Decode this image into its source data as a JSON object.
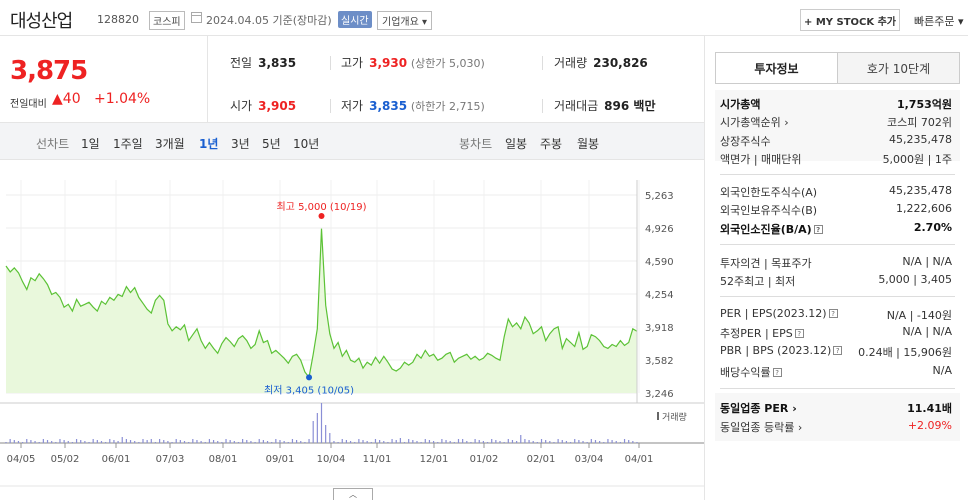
{
  "header": {
    "stock_name": "대성산업",
    "stock_code": "128820",
    "market": "코스피",
    "date": "2024.04.05  기준(장마감)",
    "realtime_badge": "실시간",
    "overview_button": "기업개요 ▾",
    "mystock_button": "+ MY STOCK 추가",
    "quick_order": "빠른주문 ▾"
  },
  "quote": {
    "price": "3,875",
    "change_label": "전일대비",
    "change_arrow": "▲",
    "change_value": "40",
    "change_pct": "+1.04%"
  },
  "stats": {
    "prev_label": "전일",
    "prev_value": "3,835",
    "high_label": "고가",
    "high_value": "3,930",
    "high_sub": "(상한가 5,030)",
    "volume_label": "거래량",
    "volume_value": "230,826",
    "open_label": "시가",
    "open_value": "3,905",
    "low_label": "저가",
    "low_value": "3,835",
    "low_sub": "(하한가 2,715)",
    "amount_label": "거래대금",
    "amount_value": "896 백만"
  },
  "periods": {
    "line_label": "선차트",
    "line_items": [
      "1일",
      "1주일",
      "3개월",
      "1년",
      "3년",
      "5년",
      "10년"
    ],
    "active": "1년",
    "candle_label": "봉차트",
    "candle_items": [
      "일봉",
      "주봉",
      "월봉"
    ]
  },
  "chart_data": {
    "type": "area",
    "y_ticks": [
      "5,263",
      "4,926",
      "4,590",
      "4,254",
      "3,918",
      "3,582",
      "3,246"
    ],
    "ylim": [
      3246,
      5263
    ],
    "x_ticks": [
      "04/05",
      "05/02",
      "06/01",
      "07/03",
      "08/01",
      "09/01",
      "10/04",
      "11/01",
      "12/01",
      "01/02",
      "02/01",
      "03/04",
      "04/01"
    ],
    "high_annotation": "최고 5,000 (10/19)",
    "low_annotation": "최저 3,405 (10/05)",
    "volume_label": "거래량",
    "series": [
      {
        "values": [
          4540,
          4480,
          4520,
          4470,
          4380,
          4300,
          4420,
          4390,
          4460,
          4410,
          4350,
          4250,
          4270,
          4220,
          4120,
          4150,
          4080,
          4200,
          4130,
          4150,
          4170,
          4120,
          4080,
          4180,
          4150,
          4220,
          4190,
          4250,
          4230,
          4330,
          4270,
          4320,
          4220,
          4160,
          4100,
          4060,
          4190,
          4240,
          4190,
          3950,
          3880,
          3920,
          3890,
          3940,
          3780,
          3840,
          3900,
          3780,
          3700,
          3760,
          3700,
          3650,
          3750,
          3810,
          3770,
          3720,
          3800,
          3830,
          3780,
          3700,
          3740,
          3880,
          3760,
          3780,
          3650,
          3680,
          3640,
          3600,
          3550,
          3620,
          3640,
          3580,
          3460,
          3405,
          3640,
          3900,
          4920,
          4140,
          3850,
          3700,
          3760,
          3620,
          3680,
          3580,
          3560,
          3600,
          3500,
          3560,
          3530,
          3610,
          3550,
          3620,
          3560,
          3490,
          3470,
          3500,
          3560,
          3530,
          3560,
          3640,
          3600,
          3680,
          3620,
          3640,
          3580,
          3600,
          3640,
          3660,
          3560,
          3600,
          3620,
          3640,
          3590,
          3620,
          3580,
          3600,
          3650,
          3630,
          3600,
          3580,
          3820,
          4000,
          3920,
          3960,
          3900,
          4020,
          3960,
          3850,
          3880,
          3920,
          3780,
          3850,
          3900,
          3920,
          3700,
          3800,
          3760,
          3720,
          3860,
          3690,
          3720,
          3840,
          3820,
          3780,
          3720,
          3700,
          3740,
          3720,
          3780,
          3730,
          3760,
          3900,
          3875
        ]
      }
    ]
  },
  "info_panel": {
    "tab_info": "투자정보",
    "tab_orderbook": "호가 10단계",
    "market_cap_label": "시가총액",
    "market_cap_value": "1,753억원",
    "cap_rank_label": "시가총액순위",
    "cap_rank_value": "코스피 702위",
    "shares_label": "상장주식수",
    "shares_value": "45,235,478",
    "par_label": "액면가 | 매매단위",
    "par_value": "5,000원 | 1주",
    "foreign_limit_label": "외국인한도주식수(A)",
    "foreign_limit_value": "45,235,478",
    "foreign_hold_label": "외국인보유주식수(B)",
    "foreign_hold_value": "1,222,606",
    "foreign_ratio_label": "외국인소진율(B/A)",
    "foreign_ratio_value": "2.70%",
    "opinion_label": "투자의견 | 목표주가",
    "opinion_value": "N/A | N/A",
    "week52_label": "52주최고 | 최저",
    "week52_value": "5,000 | 3,405",
    "per_label": "PER | EPS(2023.12)",
    "per_value": "N/A | -140원",
    "est_per_label": "추정PER | EPS",
    "est_per_value": "N/A | N/A",
    "pbr_label": "PBR | BPS (2023.12)",
    "pbr_value": "0.24배 | 15,906원",
    "dividend_label": "배당수익률",
    "dividend_value": "N/A",
    "sector_per_label": "동일업종 PER",
    "sector_per_value": "11.41배",
    "sector_change_label": "동일업종 등락률",
    "sector_change_value": "+2.09%"
  },
  "colors": {
    "up": "#e22222",
    "down": "#1a5fd0",
    "line": "#5cc236",
    "area": "#e9f8dc"
  }
}
